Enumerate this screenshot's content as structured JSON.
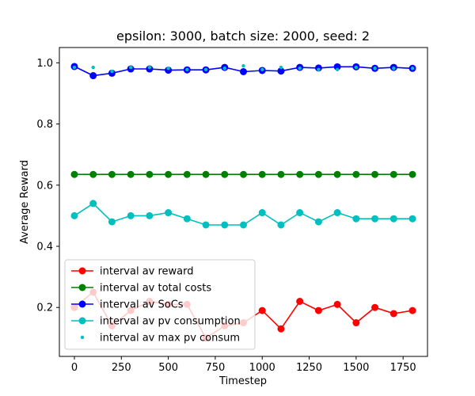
{
  "chart_data": {
    "type": "line",
    "title": "epsilon: 3000, batch size: 2000, seed: 2",
    "xlabel": "Timestep",
    "ylabel": "Average Reward",
    "xlim": [
      -80,
      1880
    ],
    "ylim": [
      0.04,
      1.05
    ],
    "xticks": [
      0,
      250,
      500,
      750,
      1000,
      1250,
      1500,
      1750
    ],
    "yticks": [
      0.2,
      0.4,
      0.6,
      0.8,
      1.0
    ],
    "xtick_labels": [
      "0",
      "250",
      "500",
      "750",
      "1000",
      "1250",
      "1500",
      "1750"
    ],
    "ytick_labels": [
      "0.2",
      "0.4",
      "0.6",
      "0.8",
      "1.0"
    ],
    "grid": false,
    "legend_position": "lower-left",
    "x": [
      0,
      100,
      200,
      300,
      400,
      500,
      600,
      700,
      800,
      900,
      1000,
      1100,
      1200,
      1300,
      1400,
      1500,
      1600,
      1700,
      1800
    ],
    "series": [
      {
        "name": "interval av reward",
        "color": "#ff0000",
        "style": "line-marker",
        "values": [
          0.2,
          0.25,
          0.14,
          0.19,
          0.22,
          0.21,
          0.21,
          0.1,
          0.14,
          0.15,
          0.19,
          0.13,
          0.22,
          0.19,
          0.21,
          0.15,
          0.2,
          0.18,
          0.19
        ]
      },
      {
        "name": "interval av total costs",
        "color": "#008000",
        "style": "line-marker",
        "values": [
          0.635,
          0.635,
          0.635,
          0.635,
          0.635,
          0.635,
          0.635,
          0.635,
          0.635,
          0.635,
          0.635,
          0.635,
          0.635,
          0.635,
          0.635,
          0.635,
          0.635,
          0.635,
          0.635
        ]
      },
      {
        "name": "interval av SoCs",
        "color": "#0000ff",
        "style": "line-marker",
        "values": [
          0.988,
          0.958,
          0.966,
          0.98,
          0.98,
          0.976,
          0.977,
          0.977,
          0.985,
          0.971,
          0.975,
          0.973,
          0.985,
          0.983,
          0.987,
          0.987,
          0.982,
          0.985,
          0.982
        ]
      },
      {
        "name": "interval av pv consumption",
        "color": "#00bfbf",
        "style": "line-marker",
        "values": [
          0.5,
          0.54,
          0.48,
          0.5,
          0.5,
          0.51,
          0.49,
          0.47,
          0.47,
          0.47,
          0.51,
          0.47,
          0.51,
          0.48,
          0.51,
          0.49,
          0.49,
          0.49,
          0.49
        ]
      },
      {
        "name": "interval av max pv consum",
        "color": "#00bfbf",
        "style": "dots",
        "values": [
          0.985,
          0.985,
          0.972,
          0.985,
          0.985,
          0.982,
          0.978,
          0.978,
          0.982,
          0.99,
          0.978,
          0.985,
          0.982,
          0.978,
          0.978,
          0.985,
          0.982,
          0.982,
          0.982
        ]
      }
    ]
  }
}
